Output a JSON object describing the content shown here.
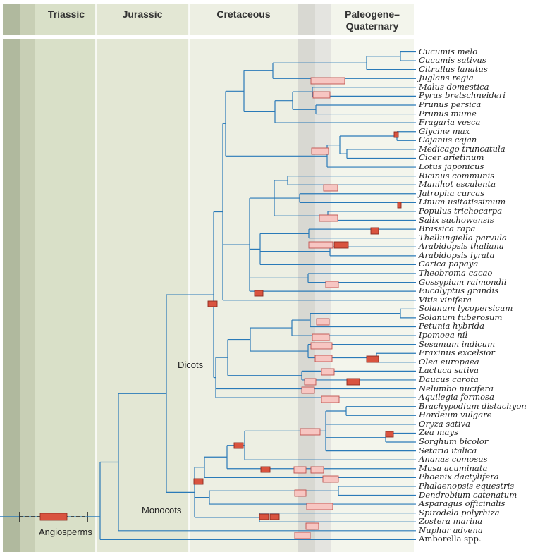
{
  "periods": [
    {
      "label": "Triassic"
    },
    {
      "label": "Jurassic"
    },
    {
      "label": "Cretaceous"
    },
    {
      "label": "Paleogene–\nQuaternary"
    }
  ],
  "clade_labels": {
    "dicots": "Dicots",
    "monocots": "Monocots",
    "angiosperms": "Angiosperms"
  },
  "species": [
    "Cucumis melo",
    "Cucumis sativus",
    "Citrullus lanatus",
    "Juglans regia",
    "Malus domestica",
    "Pyrus bretschneideri",
    "Prunus persica",
    "Prunus mume",
    "Fragaria vesca",
    "Glycine max",
    "Cajanus cajan",
    "Medicago truncatula",
    "Cicer arietinum",
    "Lotus japonicus",
    "Ricinus communis",
    "Manihot esculenta",
    "Jatropha curcas",
    "Linum usitatissimum",
    "Populus trichocarpa",
    "Salix suchowensis",
    "Brassica rapa",
    "Thellungiella parvula",
    "Arabidopsis thaliana",
    "Arabidopsis lyrata",
    "Carica papaya",
    "Theobroma cacao",
    "Gossypium raimondii",
    "Eucalyptus grandis",
    "Vitis vinifera",
    "Solanum lycopersicum",
    "Solanum tuberosum",
    "Petunia hybrida",
    "Ipomoea nil",
    "Sesamum indicum",
    "Fraxinus excelsior",
    "Olea europaea",
    "Lactuca sativa",
    "Daucus carota",
    "Nelumbo nucifera",
    "Aquilegia formosa",
    "Brachypodium distachyon",
    "Hordeum vulgare",
    "Oryza sativa",
    "Zea mays",
    "Sorghum bicolor",
    "Setaria italica",
    "Ananas comosus",
    "Musa acuminata",
    "Phoenix dactylifera",
    "Phalaenopsis equestris",
    "Dendrobium catenatum",
    "Asparagus officinalis",
    "Spirodela polyrhiza",
    "Zostera marina",
    "Nuphar advena",
    "Amborella spp."
  ],
  "colors": {
    "branch": "#2a7ab8",
    "duplication_light_fill": "#f7c6c2",
    "duplication_light_stroke": "#c0504d",
    "duplication_dark_fill": "#d9533f",
    "triassic_band": "#d9e0c8",
    "jurassic_band": "#e4e8d5",
    "cretaceous_band": "#edf0e3",
    "cenozoic_band": "#f4f6ee",
    "permian_band": "#b0b99e"
  }
}
